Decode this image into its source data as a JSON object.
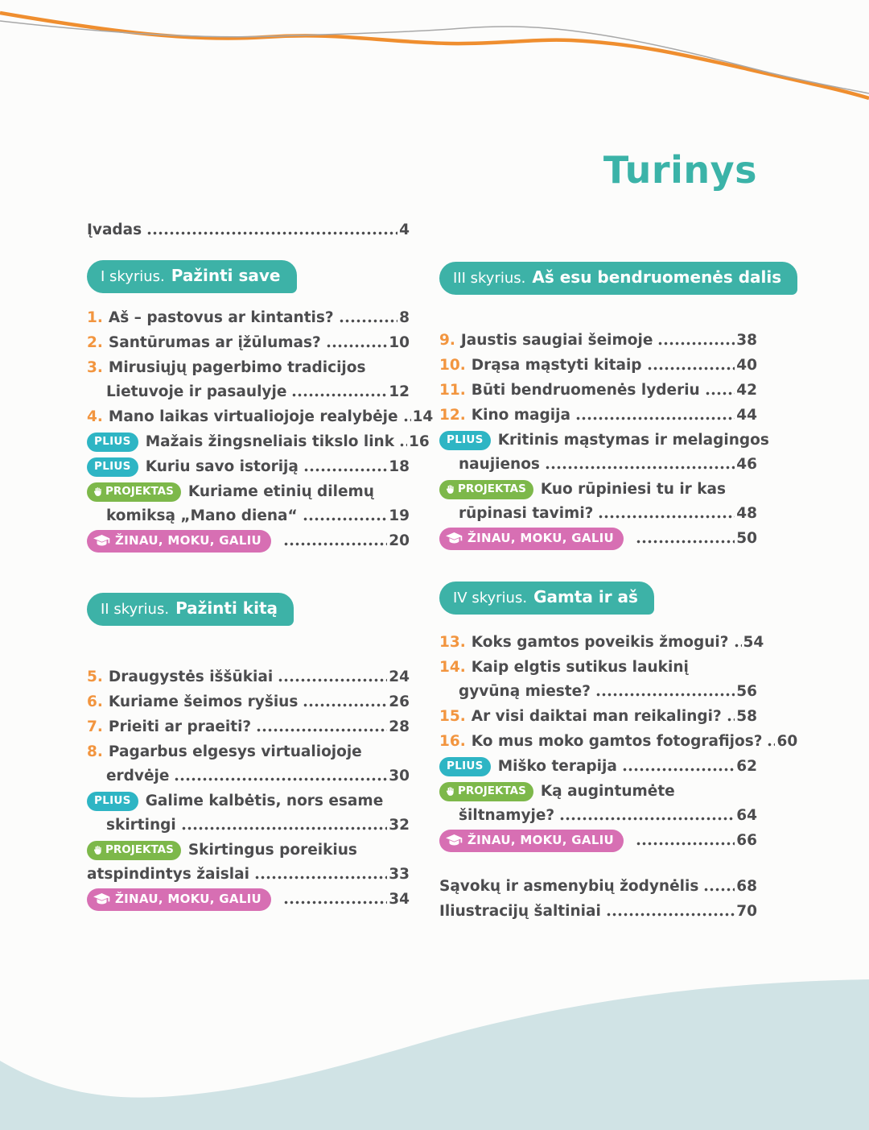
{
  "title": "Turinys",
  "intro": {
    "label": "Įvadas",
    "page": "4"
  },
  "badges": {
    "plius": "PLIUS",
    "projektas": "PROJEKTAS",
    "zinau": "ŽINAU, MOKU, GALIU"
  },
  "palette": {
    "teal": "#3db2a7",
    "cyan_badge": "#2eb5c4",
    "green_badge": "#7db84a",
    "pink_badge": "#d76fb3",
    "orange_number": "#f2953f",
    "text": "#4c4c4e",
    "wave_orange": "#ef8e2f",
    "wave_gray": "#a8a8a8",
    "bottom_wave_fill": "#d0e3e5"
  },
  "columns": {
    "left": [
      {
        "kicker": "I skyrius.",
        "name": "Pažinti save",
        "entries": [
          {
            "num": "1.",
            "text": "Aš – pastovus ar kintantis?",
            "page": "8"
          },
          {
            "num": "2.",
            "text": "Santūrumas ar įžūlumas?",
            "page": "10"
          },
          {
            "num": "3.",
            "text": "Mirusiųjų pagerbimo tradicijos",
            "text2": "Lietuvoje ir pasaulyje",
            "page": "12"
          },
          {
            "num": "4.",
            "text": "Mano laikas virtualiojoje realybėje",
            "page": "14"
          },
          {
            "badge": "plius",
            "text": "Mažais žingsneliais tikslo link",
            "page": "16"
          },
          {
            "badge": "plius",
            "text": "Kuriu savo istoriją",
            "page": "18"
          },
          {
            "badge": "projektas",
            "text": "Kuriame etinių dilemų",
            "text2": "komiksą „Mano diena“",
            "page": "19"
          },
          {
            "badge": "zinau",
            "page": "20"
          }
        ]
      },
      {
        "kicker": "II skyrius.",
        "name": "Pažinti kitą",
        "entries": [
          {
            "num": "5.",
            "text": "Draugystės iššūkiai",
            "page": "24"
          },
          {
            "num": "6.",
            "text": "Kuriame šeimos ryšius",
            "page": "26"
          },
          {
            "num": "7.",
            "text": "Prieiti ar praeiti?",
            "page": "28"
          },
          {
            "num": "8.",
            "text": "Pagarbus elgesys virtualiojoje",
            "text2": "erdvėje",
            "page": "30"
          },
          {
            "badge": "plius",
            "text": "Galime kalbėtis, nors esame",
            "text2": "skirtingi",
            "page": "32"
          },
          {
            "badge": "projektas",
            "text": "Skirtingus poreikius",
            "text2": "atspindintys žaislai",
            "flush2": true,
            "page": "33"
          },
          {
            "badge": "zinau",
            "page": "34"
          }
        ]
      }
    ],
    "right": [
      {
        "kicker": "III skyrius.",
        "name": "Aš esu bendruomenės dalis",
        "entries": [
          {
            "num": "9.",
            "text": "Jaustis saugiai šeimoje",
            "page": "38"
          },
          {
            "num": "10.",
            "text": "Drąsa mąstyti kitaip",
            "page": "40"
          },
          {
            "num": "11.",
            "text": "Būti bendruomenės lyderiu",
            "page": "42"
          },
          {
            "num": "12.",
            "text": "Kino magija",
            "page": "44"
          },
          {
            "badge": "plius",
            "text": "Kritinis mąstymas ir melagingos",
            "text2": "naujienos",
            "page": "46"
          },
          {
            "badge": "projektas",
            "text": "Kuo rūpiniesi tu ir kas",
            "text2": "rūpinasi tavimi?",
            "page": "48"
          },
          {
            "badge": "zinau",
            "page": "50"
          }
        ]
      },
      {
        "kicker": "IV skyrius.",
        "name": "Gamta ir aš",
        "entries": [
          {
            "num": "13.",
            "text": "Koks gamtos poveikis žmogui?",
            "page": "54"
          },
          {
            "num": "14.",
            "text": "Kaip elgtis sutikus laukinį",
            "text2": "gyvūną mieste?",
            "page": "56"
          },
          {
            "num": "15.",
            "text": "Ar visi daiktai man reikalingi?",
            "page": "58"
          },
          {
            "num": "16.",
            "text": "Ko mus moko gamtos fotografijos?",
            "page": "60"
          },
          {
            "badge": "plius",
            "text": "Miško terapija",
            "page": "62"
          },
          {
            "badge": "projektas",
            "text": "Ką augintumėte",
            "text2": "šiltnamyje?",
            "page": "64"
          },
          {
            "badge": "zinau",
            "page": "66"
          }
        ]
      }
    ]
  },
  "footer": [
    {
      "text": "Sąvokų ir asmenybių žodynėlis",
      "page": "68"
    },
    {
      "text": "Iliustracijų šaltiniai",
      "page": "70"
    }
  ]
}
